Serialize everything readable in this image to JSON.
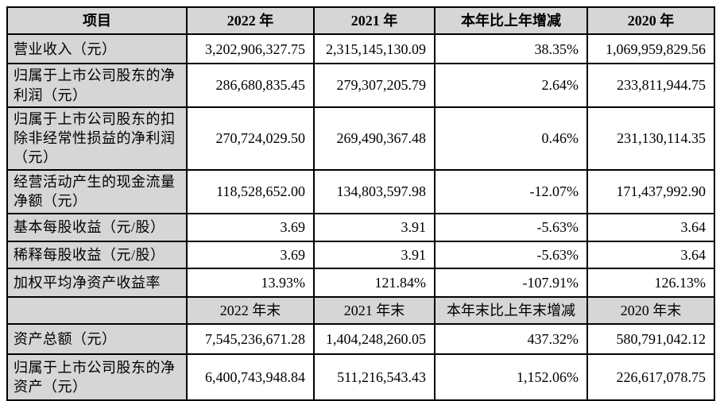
{
  "colors": {
    "header_bg": "#d6d6d6",
    "label_column_bg": "#d6d6d6",
    "cell_bg": "#ffffff",
    "border": "#000000",
    "text": "#000000"
  },
  "table": {
    "header1": [
      "项目",
      "2022 年",
      "2021 年",
      "本年比上年增减",
      "2020 年"
    ],
    "section1_rows": [
      [
        "营业收入（元）",
        "3,202,906,327.75",
        "2,315,145,130.09",
        "38.35%",
        "1,069,959,829.56"
      ],
      [
        "归属于上市公司股东的净利润（元）",
        "286,680,835.45",
        "279,307,205.79",
        "2.64%",
        "233,811,944.75"
      ],
      [
        "归属于上市公司股东的扣除非经常性损益的净利润（元）",
        "270,724,029.50",
        "269,490,367.48",
        "0.46%",
        "231,130,114.35"
      ],
      [
        "经营活动产生的现金流量净额（元）",
        "118,528,652.00",
        "134,803,597.98",
        "-12.07%",
        "171,437,992.90"
      ],
      [
        "基本每股收益（元/股）",
        "3.69",
        "3.91",
        "-5.63%",
        "3.64"
      ],
      [
        "稀释每股收益（元/股）",
        "3.69",
        "3.91",
        "-5.63%",
        "3.64"
      ],
      [
        "加权平均净资产收益率",
        "13.93%",
        "121.84%",
        "-107.91%",
        "126.13%"
      ]
    ],
    "header2": [
      "",
      "2022 年末",
      "2021 年末",
      "本年末比上年末增减",
      "2020 年末"
    ],
    "section2_rows": [
      [
        "资产总额（元）",
        "7,545,236,671.28",
        "1,404,248,260.05",
        "437.32%",
        "580,791,042.12"
      ],
      [
        "归属于上市公司股东的净资产（元）",
        "6,400,743,948.84",
        "511,216,543.43",
        "1,152.06%",
        "226,617,078.75"
      ]
    ]
  }
}
